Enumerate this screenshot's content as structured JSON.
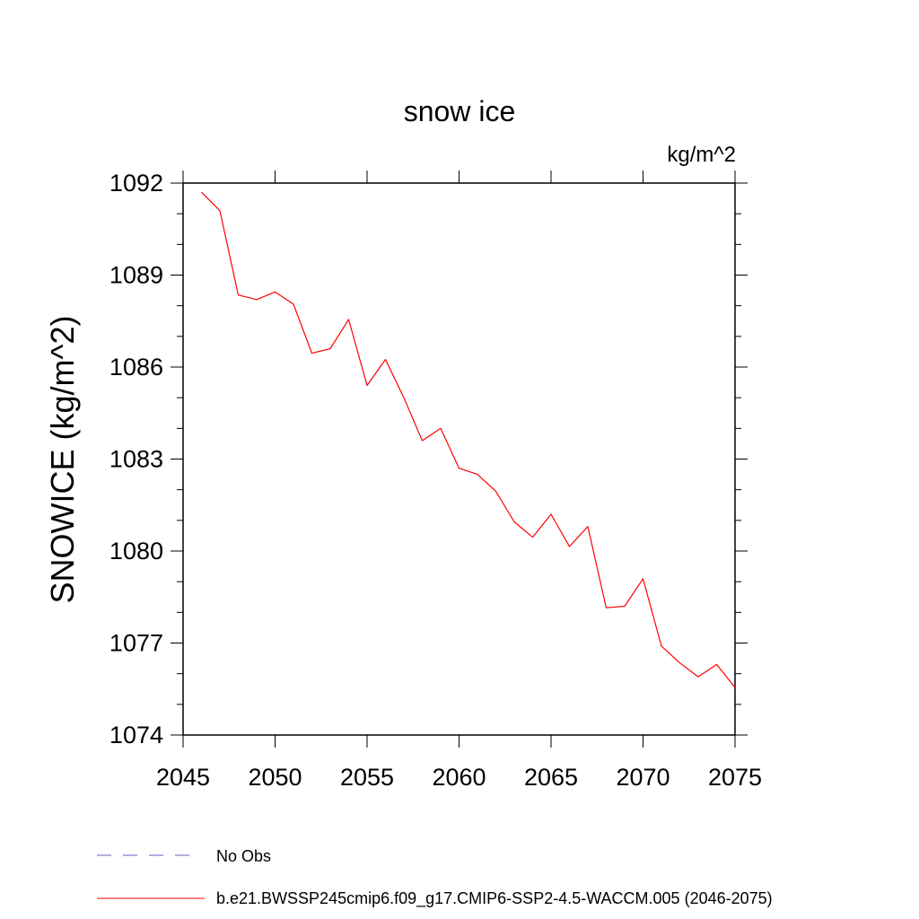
{
  "chart_data": {
    "type": "line",
    "title": "snow ice",
    "units_label": "kg/m^2",
    "xlabel": "",
    "ylabel": "SNOWICE  (kg/m^2)",
    "xlim": [
      2045,
      2075
    ],
    "ylim": [
      1074,
      1092
    ],
    "xticks": [
      2045,
      2050,
      2055,
      2060,
      2065,
      2070,
      2075
    ],
    "yticks": [
      1074,
      1077,
      1080,
      1083,
      1086,
      1089,
      1092
    ],
    "grid": false,
    "legend_placement": "bottom",
    "series": [
      {
        "name": "b.e21.BWSSP245cmip6.f09_g17.CMIP6-SSP2-4.5-WACCM.005 (2046-2075)",
        "color": "#ff0000",
        "style": "solid",
        "x": [
          2046,
          2047,
          2048,
          2049,
          2050,
          2051,
          2052,
          2053,
          2054,
          2055,
          2056,
          2057,
          2058,
          2059,
          2060,
          2061,
          2062,
          2063,
          2064,
          2065,
          2066,
          2067,
          2068,
          2069,
          2070,
          2071,
          2072,
          2073,
          2074,
          2075
        ],
        "values": [
          1091.7,
          1091.1,
          1088.35,
          1088.2,
          1088.45,
          1088.05,
          1086.45,
          1086.6,
          1087.55,
          1085.4,
          1086.25,
          1085.0,
          1083.6,
          1084.0,
          1082.7,
          1082.5,
          1081.95,
          1080.95,
          1080.45,
          1081.2,
          1080.15,
          1080.8,
          1078.15,
          1078.2,
          1079.1,
          1076.9,
          1076.35,
          1075.9,
          1076.3,
          1075.55
        ]
      }
    ],
    "legend": [
      {
        "label": "No Obs",
        "color": "#6a5acd",
        "style": "dashed"
      },
      {
        "label": "b.e21.BWSSP245cmip6.f09_g17.CMIP6-SSP2-4.5-WACCM.005 (2046-2075)",
        "color": "#ff0000",
        "style": "solid"
      }
    ]
  }
}
